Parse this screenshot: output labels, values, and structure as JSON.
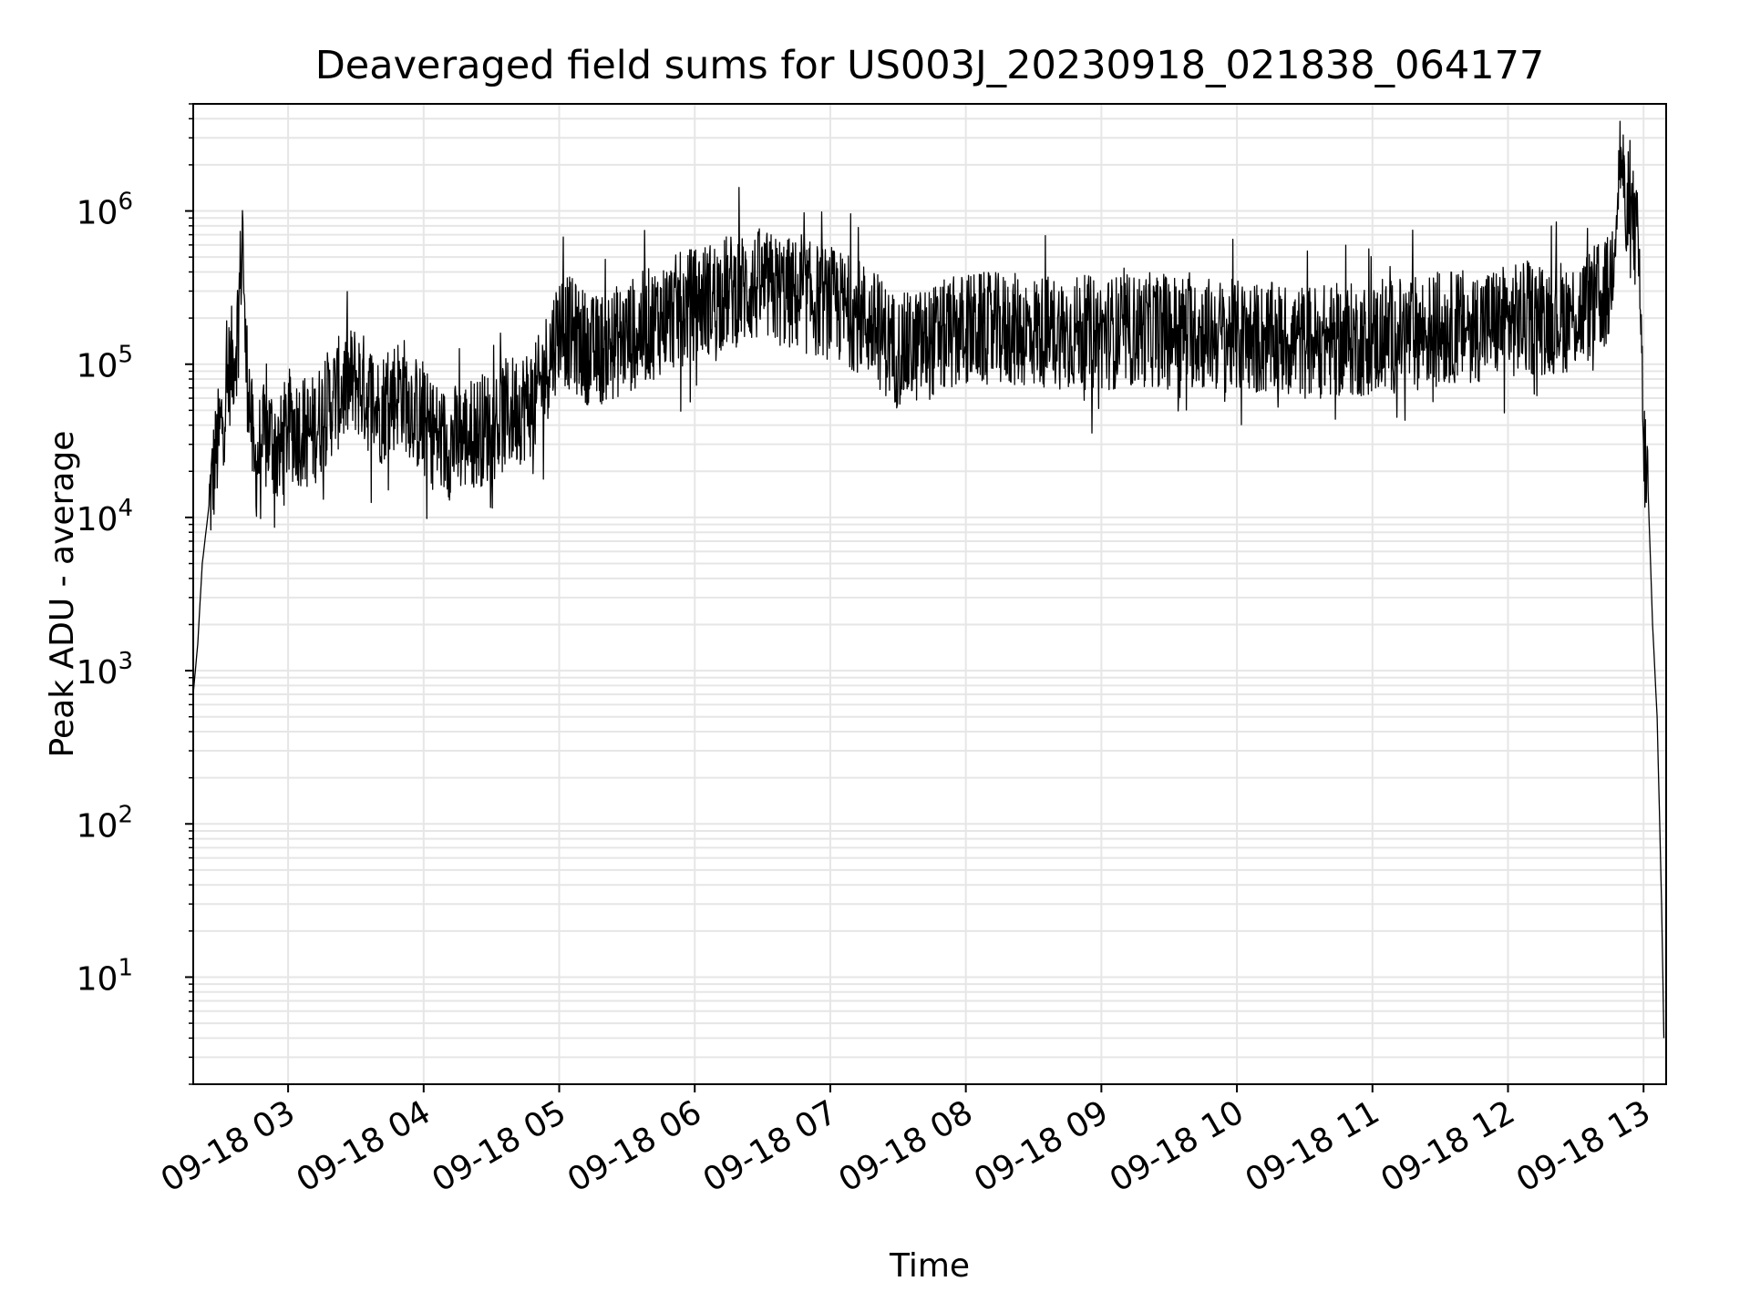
{
  "chart_data": {
    "type": "line",
    "title": "Deaveraged field sums for US003J_20230918_021838_064177",
    "xlabel": "Time",
    "ylabel": "Peak ADU - average",
    "xscale": "time",
    "yscale": "log",
    "xlim": [
      "09-18 02:18",
      "09-18 13:10"
    ],
    "ylim": [
      2,
      5000000
    ],
    "grid": true,
    "x_ticks": [
      "09-18 03",
      "09-18 04",
      "09-18 05",
      "09-18 06",
      "09-18 07",
      "09-18 08",
      "09-18 09",
      "09-18 10",
      "09-18 11",
      "09-18 12",
      "09-18 13"
    ],
    "y_ticks": [
      {
        "base": "10",
        "exp": "1",
        "value": 10
      },
      {
        "base": "10",
        "exp": "2",
        "value": 100
      },
      {
        "base": "10",
        "exp": "3",
        "value": 1000
      },
      {
        "base": "10",
        "exp": "4",
        "value": 10000
      },
      {
        "base": "10",
        "exp": "5",
        "value": 100000
      },
      {
        "base": "10",
        "exp": "6",
        "value": 1000000
      }
    ],
    "series": [
      {
        "color": "#000000",
        "points": [
          [
            "09-18 02:18",
            700
          ],
          [
            "09-18 02:20",
            1500
          ],
          [
            "09-18 02:22",
            5000
          ],
          [
            "09-18 02:25",
            12000
          ],
          [
            "09-18 02:28",
            25000
          ],
          [
            "09-18 02:31",
            45000
          ],
          [
            "09-18 02:34",
            90000
          ],
          [
            "09-18 02:37",
            130000
          ],
          [
            "09-18 02:39",
            400000
          ],
          [
            "09-18 02:40",
            850000
          ],
          [
            "09-18 02:41",
            120000
          ],
          [
            "09-18 02:43",
            60000
          ],
          [
            "09-18 02:45",
            20000
          ],
          [
            "09-18 02:48",
            30000
          ],
          [
            "09-18 02:52",
            35000
          ],
          [
            "09-18 02:56",
            25000
          ],
          [
            "09-18 03:00",
            40000
          ],
          [
            "09-18 03:10",
            35000
          ],
          [
            "09-18 03:20",
            60000
          ],
          [
            "09-18 03:30",
            80000
          ],
          [
            "09-18 03:40",
            50000
          ],
          [
            "09-18 03:50",
            70000
          ],
          [
            "09-18 04:00",
            40000
          ],
          [
            "09-18 04:10",
            30000
          ],
          [
            "09-18 04:20",
            35000
          ],
          [
            "09-18 04:30",
            40000
          ],
          [
            "09-18 04:40",
            50000
          ],
          [
            "09-18 04:50",
            60000
          ],
          [
            "09-18 05:00",
            180000
          ],
          [
            "09-18 05:15",
            120000
          ],
          [
            "09-18 05:30",
            150000
          ],
          [
            "09-18 05:45",
            200000
          ],
          [
            "09-18 06:00",
            250000
          ],
          [
            "09-18 06:15",
            300000
          ],
          [
            "09-18 06:30",
            320000
          ],
          [
            "09-18 06:45",
            280000
          ],
          [
            "09-18 07:00",
            250000
          ],
          [
            "09-18 07:15",
            200000
          ],
          [
            "09-18 07:30",
            120000
          ],
          [
            "09-18 07:45",
            140000
          ],
          [
            "09-18 08:00",
            170000
          ],
          [
            "09-18 08:30",
            165000
          ],
          [
            "09-18 09:00",
            160000
          ],
          [
            "09-18 09:30",
            170000
          ],
          [
            "09-18 10:00",
            150000
          ],
          [
            "09-18 10:30",
            140000
          ],
          [
            "09-18 11:00",
            145000
          ],
          [
            "09-18 11:30",
            170000
          ],
          [
            "09-18 12:00",
            190000
          ],
          [
            "09-18 12:30",
            210000
          ],
          [
            "09-18 12:45",
            300000
          ],
          [
            "09-18 12:50",
            2600000
          ],
          [
            "09-18 12:53",
            600000
          ],
          [
            "09-18 12:55",
            900000
          ],
          [
            "09-18 12:58",
            500000
          ],
          [
            "09-18 13:00",
            30000
          ],
          [
            "09-18 13:02",
            15000
          ],
          [
            "09-18 13:04",
            2000
          ],
          [
            "09-18 13:06",
            500
          ],
          [
            "09-18 13:08",
            30
          ],
          [
            "09-18 13:09",
            4
          ]
        ]
      }
    ]
  }
}
